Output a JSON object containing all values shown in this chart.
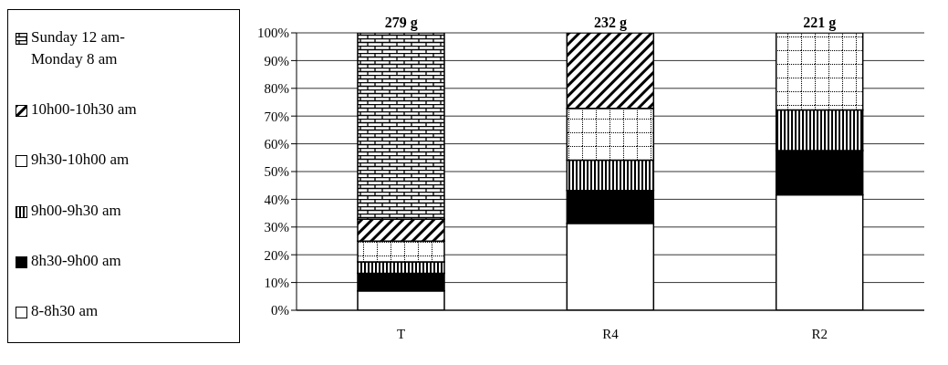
{
  "chart_data": {
    "type": "bar",
    "stacked": true,
    "categories": [
      "T",
      "R4",
      "R2"
    ],
    "series": [
      {
        "name": "8-8h30 am",
        "color": "#ffffff",
        "values": [
          7,
          31.3,
          41.6
        ]
      },
      {
        "name": "8h30-9h00 am",
        "color": "#000000",
        "values": [
          6.3,
          11.9,
          16
        ]
      },
      {
        "name": "9h00-9h30 am",
        "color": "#000000",
        "values": [
          4.1,
          10.9,
          14.6
        ]
      },
      {
        "name": "9h30-10h00 am",
        "color": "#000000",
        "values": [
          7.5,
          18.7,
          27.8
        ]
      },
      {
        "name": "10h00-10h30 am",
        "color": "#000000",
        "values": [
          7.9,
          27.2,
          0
        ]
      },
      {
        "name": "Sunday 12 am-Monday 8 am",
        "color": "#000000",
        "values": [
          67.2,
          0,
          0
        ]
      }
    ],
    "ylim": [
      0,
      100
    ],
    "yticks": [
      {
        "value": 0,
        "label": "0%"
      },
      {
        "value": 10,
        "label": "10%"
      },
      {
        "value": 20,
        "label": "20%"
      },
      {
        "value": 30,
        "label": "30%"
      },
      {
        "value": 40,
        "label": "40%"
      },
      {
        "value": 50,
        "label": "50%"
      },
      {
        "value": 60,
        "label": "60%"
      },
      {
        "value": 70,
        "label": "70%"
      },
      {
        "value": 80,
        "label": "80%"
      },
      {
        "value": 90,
        "label": "90%"
      },
      {
        "value": 100,
        "label": "100%"
      }
    ],
    "annotations": [
      {
        "text": "279 g",
        "x": "T",
        "y": 100
      },
      {
        "text": "232 g",
        "x": "R4",
        "y": 100
      },
      {
        "text": "221 g",
        "x": "R2",
        "y": 100
      }
    ],
    "grid": "y",
    "legend": "left"
  }
}
